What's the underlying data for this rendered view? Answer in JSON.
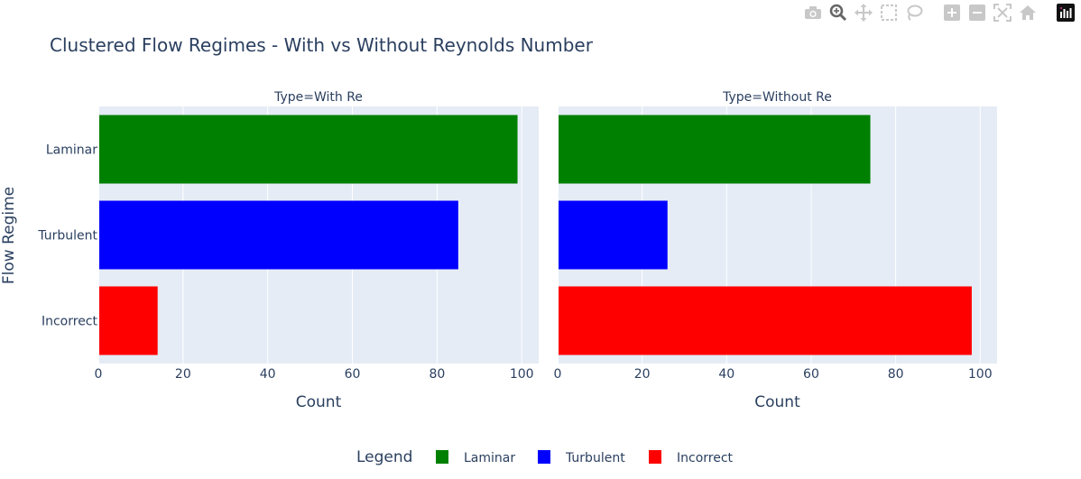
{
  "toolbar": {
    "icons": [
      "camera-icon",
      "zoom-icon",
      "pan-icon",
      "box-select-icon",
      "lasso-select-icon",
      "zoom-in-icon",
      "zoom-out-icon",
      "autoscale-icon",
      "reset-axes-icon",
      "plotly-logo-icon"
    ]
  },
  "colors": {
    "Laminar": "#008000",
    "Turbulent": "#0000ff",
    "Incorrect": "#ff0000",
    "plot_bg": "#e5ecf6"
  },
  "chart_data": {
    "type": "bar",
    "orientation": "horizontal",
    "title": "Clustered Flow Regimes - With vs Without Reynolds Number",
    "ylabel": "Flow Regime",
    "categories": [
      "Laminar",
      "Turbulent",
      "Incorrect"
    ],
    "xlim": [
      0,
      104
    ],
    "xticks": [
      0,
      20,
      40,
      60,
      80,
      100
    ],
    "grid": true,
    "legend": {
      "title": "Legend",
      "position": "bottom",
      "entries": [
        "Laminar",
        "Turbulent",
        "Incorrect"
      ]
    },
    "panels": [
      {
        "title": "Type=With Re",
        "xlabel": "Count",
        "values": {
          "Laminar": 99,
          "Turbulent": 85,
          "Incorrect": 14
        }
      },
      {
        "title": "Type=Without Re",
        "xlabel": "Count",
        "values": {
          "Laminar": 74,
          "Turbulent": 26,
          "Incorrect": 98
        }
      }
    ]
  }
}
